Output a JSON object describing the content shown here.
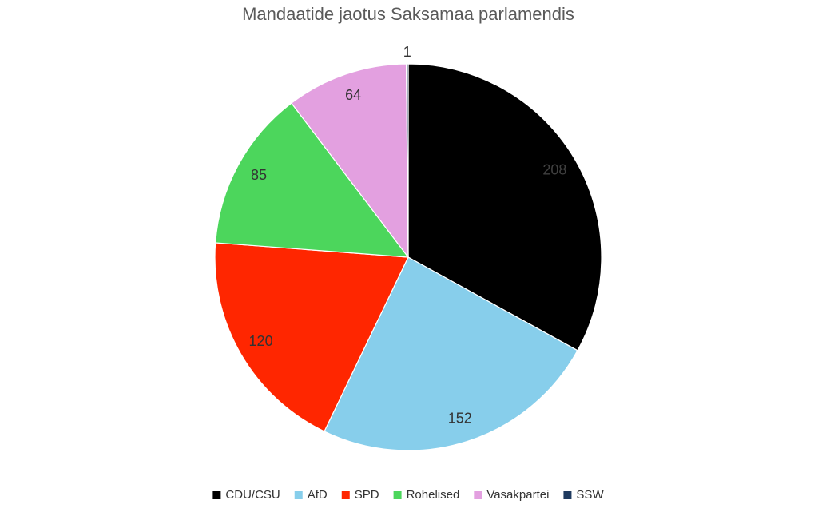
{
  "chart_data": {
    "type": "pie",
    "title": "Mandaatide jaotus Saksamaa parlamendis",
    "categories": [
      "CDU/CSU",
      "AfD",
      "SPD",
      "Rohelised",
      "Vasakpartei",
      "SSW"
    ],
    "values": [
      208,
      152,
      120,
      85,
      64,
      1
    ],
    "colors": [
      "#000000",
      "#87ceeb",
      "#ff2600",
      "#4cd65c",
      "#e3a0e0",
      "#1f3a5f"
    ],
    "legend": "bottom"
  }
}
